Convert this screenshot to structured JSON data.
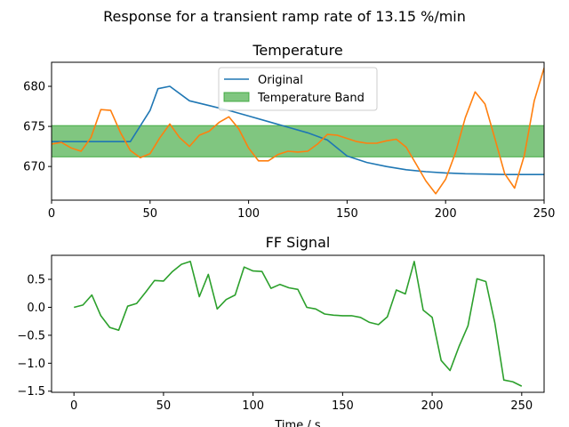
{
  "figure_title": "Response for a transient ramp rate of 13.15 %/min",
  "chart_data": [
    {
      "type": "line",
      "title": "Temperature",
      "xlabel": "",
      "ylabel": "",
      "xlim": [
        0,
        250
      ],
      "ylim": [
        665.8,
        683
      ],
      "xticks": [
        "0",
        "50",
        "100",
        "150",
        "200",
        "250"
      ],
      "yticks": [
        "670",
        "675",
        "680"
      ],
      "grid": false,
      "legend": "top-center",
      "band": {
        "name": "Temperature Band",
        "y0": 671.2,
        "y1": 675.1,
        "color": "#2ca02c"
      },
      "series": [
        {
          "name": "Original",
          "color": "#1f77b4",
          "x": [
            0,
            10,
            20,
            30,
            40,
            50,
            54,
            60,
            70,
            80,
            90,
            100,
            110,
            120,
            130,
            140,
            150,
            160,
            170,
            180,
            190,
            200,
            210,
            220,
            230,
            240,
            250
          ],
          "y": [
            673.1,
            673.1,
            673.1,
            673.1,
            673.1,
            677,
            679.7,
            680,
            678.2,
            677.6,
            677,
            676.3,
            675.6,
            674.9,
            674.2,
            673.3,
            671.3,
            670.5,
            670,
            669.6,
            669.35,
            669.2,
            669.1,
            669.05,
            669,
            669,
            669
          ]
        },
        {
          "name": "",
          "color": "#ff7f0e",
          "x": [
            0,
            5,
            10,
            15,
            20,
            25,
            30,
            35,
            40,
            45,
            50,
            55,
            60,
            65,
            70,
            75,
            80,
            85,
            90,
            95,
            100,
            105,
            110,
            115,
            120,
            125,
            130,
            135,
            140,
            145,
            150,
            155,
            160,
            165,
            170,
            175,
            180,
            185,
            190,
            195,
            200,
            205,
            210,
            215,
            220,
            225,
            230,
            235,
            240,
            245,
            250
          ],
          "y": [
            672.8,
            673,
            672.3,
            671.9,
            673.6,
            677.1,
            677,
            674.2,
            672,
            671.1,
            671.6,
            673.6,
            675.3,
            673.6,
            672.5,
            673.9,
            674.4,
            675.5,
            676.2,
            674.7,
            672.3,
            670.7,
            670.7,
            671.5,
            671.9,
            671.8,
            671.9,
            672.8,
            674,
            673.9,
            673.5,
            673.1,
            672.9,
            672.9,
            673.2,
            673.4,
            672.4,
            670.3,
            668.2,
            666.6,
            668.4,
            671.7,
            676.1,
            679.3,
            677.8,
            673.5,
            669.1,
            667.3,
            671.4,
            678.2,
            682.3
          ]
        }
      ]
    },
    {
      "type": "line",
      "title": "FF Signal",
      "xlabel": "Time / s",
      "ylabel": "",
      "xlim": [
        -12.5,
        262.5
      ],
      "ylim": [
        -1.52,
        0.93
      ],
      "xticks": [
        "0",
        "50",
        "100",
        "150",
        "200",
        "250"
      ],
      "yticks": [
        "−1.5",
        "−1.0",
        "−0.5",
        "0.0",
        "0.5"
      ],
      "grid": false,
      "series": [
        {
          "name": "",
          "color": "#2ca02c",
          "x": [
            0,
            5,
            10,
            15,
            20,
            25,
            30,
            35,
            40,
            45,
            50,
            55,
            60,
            65,
            70,
            75,
            80,
            85,
            90,
            95,
            100,
            105,
            110,
            115,
            120,
            125,
            130,
            135,
            140,
            145,
            150,
            155,
            160,
            165,
            170,
            175,
            180,
            185,
            190,
            195,
            200,
            205,
            210,
            215,
            220,
            225,
            230,
            235,
            240,
            245,
            250
          ],
          "y": [
            0,
            0.04,
            0.22,
            -0.15,
            -0.36,
            -0.41,
            0.02,
            0.07,
            0.27,
            0.48,
            0.47,
            0.64,
            0.77,
            0.82,
            0.19,
            0.59,
            -0.03,
            0.14,
            0.22,
            0.72,
            0.65,
            0.64,
            0.34,
            0.41,
            0.35,
            0.32,
            0,
            -0.03,
            -0.12,
            -0.14,
            -0.15,
            -0.15,
            -0.18,
            -0.27,
            -0.31,
            -0.17,
            0.31,
            0.24,
            0.82,
            -0.05,
            -0.18,
            -0.95,
            -1.13,
            -0.7,
            -0.33,
            0.51,
            0.46,
            -0.28,
            -1.3,
            -1.33,
            -1.41
          ]
        }
      ]
    }
  ]
}
